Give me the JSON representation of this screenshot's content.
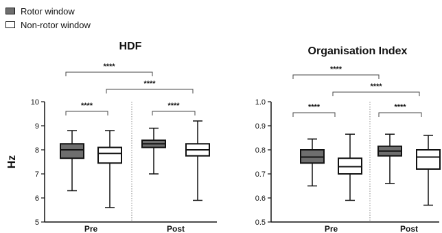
{
  "legend": {
    "items": [
      {
        "label": "Rotor window",
        "color": "#6e6e6e"
      },
      {
        "label": "Non-rotor window",
        "color": "#ffffff"
      }
    ]
  },
  "chart_data": [
    {
      "type": "box",
      "title": "HDF",
      "ylabel": "Hz",
      "ylim": [
        5,
        10
      ],
      "yticks": [
        "5",
        "6",
        "7",
        "8",
        "9",
        "10"
      ],
      "groups": [
        "Pre",
        "Post"
      ],
      "series": [
        {
          "name": "Rotor window",
          "color": "#6e6e6e",
          "boxes": [
            {
              "group": "Pre",
              "min": 6.3,
              "q1": 7.65,
              "median": 8.0,
              "q3": 8.25,
              "max": 8.8
            },
            {
              "group": "Post",
              "min": 7.0,
              "q1": 8.1,
              "median": 8.25,
              "q3": 8.4,
              "max": 8.9
            }
          ]
        },
        {
          "name": "Non-rotor window",
          "color": "#ffffff",
          "boxes": [
            {
              "group": "Pre",
              "min": 5.6,
              "q1": 7.45,
              "median": 7.85,
              "q3": 8.1,
              "max": 8.8
            },
            {
              "group": "Post",
              "min": 5.9,
              "q1": 7.75,
              "median": 8.0,
              "q3": 8.25,
              "max": 9.2
            }
          ]
        }
      ],
      "significance": [
        "****",
        "****",
        "****",
        "****"
      ]
    },
    {
      "type": "box",
      "title": "Organisation Index",
      "ylabel": "",
      "ylim": [
        0.5,
        1.0
      ],
      "yticks": [
        "0.5",
        "0.6",
        "0.7",
        "0.8",
        "0.9",
        "1.0"
      ],
      "groups": [
        "Pre",
        "Post"
      ],
      "series": [
        {
          "name": "Rotor window",
          "color": "#6e6e6e",
          "boxes": [
            {
              "group": "Pre",
              "min": 0.65,
              "q1": 0.745,
              "median": 0.77,
              "q3": 0.8,
              "max": 0.845
            },
            {
              "group": "Post",
              "min": 0.66,
              "q1": 0.775,
              "median": 0.795,
              "q3": 0.815,
              "max": 0.865
            }
          ]
        },
        {
          "name": "Non-rotor window",
          "color": "#ffffff",
          "boxes": [
            {
              "group": "Pre",
              "min": 0.59,
              "q1": 0.7,
              "median": 0.73,
              "q3": 0.765,
              "max": 0.865
            },
            {
              "group": "Post",
              "min": 0.57,
              "q1": 0.72,
              "median": 0.77,
              "q3": 0.8,
              "max": 0.86
            }
          ]
        }
      ],
      "significance": [
        "****",
        "****",
        "****",
        "****"
      ]
    }
  ]
}
